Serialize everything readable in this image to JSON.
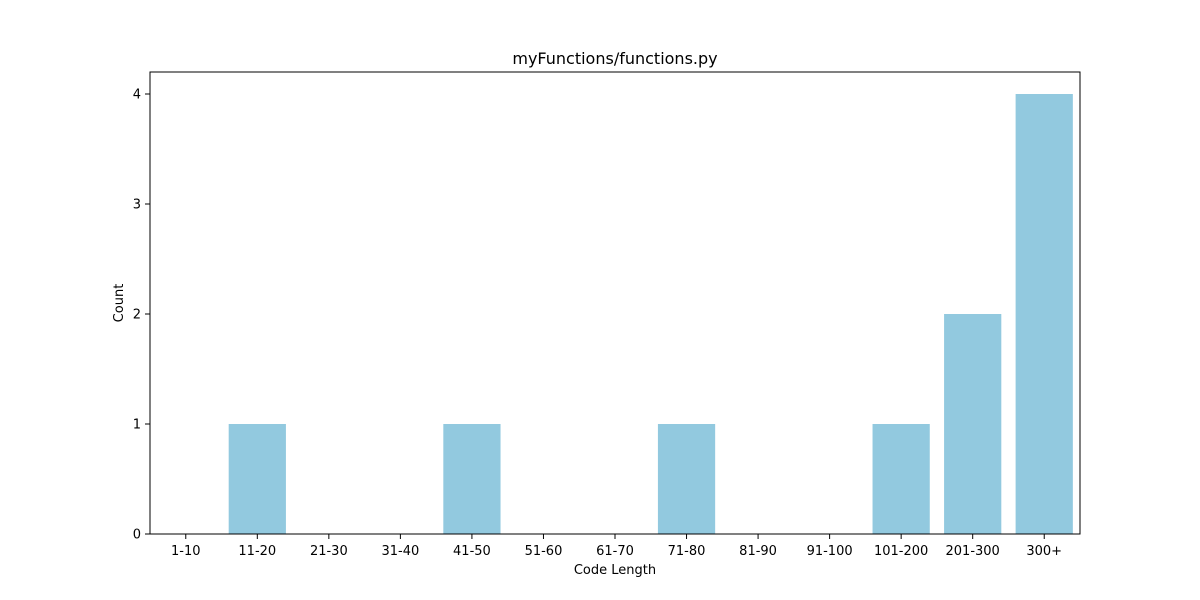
{
  "chart_data": {
    "type": "bar",
    "title": "myFunctions/functions.py",
    "xlabel": "Code Length",
    "ylabel": "Count",
    "categories": [
      "1-10",
      "11-20",
      "21-30",
      "31-40",
      "41-50",
      "51-60",
      "61-70",
      "71-80",
      "81-90",
      "91-100",
      "101-200",
      "201-300",
      "300+"
    ],
    "values": [
      0,
      1,
      0,
      0,
      1,
      0,
      0,
      1,
      0,
      0,
      1,
      2,
      4
    ],
    "ylim": [
      0,
      4.2
    ],
    "yticks": [
      0,
      1,
      2,
      3,
      4
    ],
    "bar_color": "#92c9df",
    "grid": false,
    "legend": "none"
  }
}
